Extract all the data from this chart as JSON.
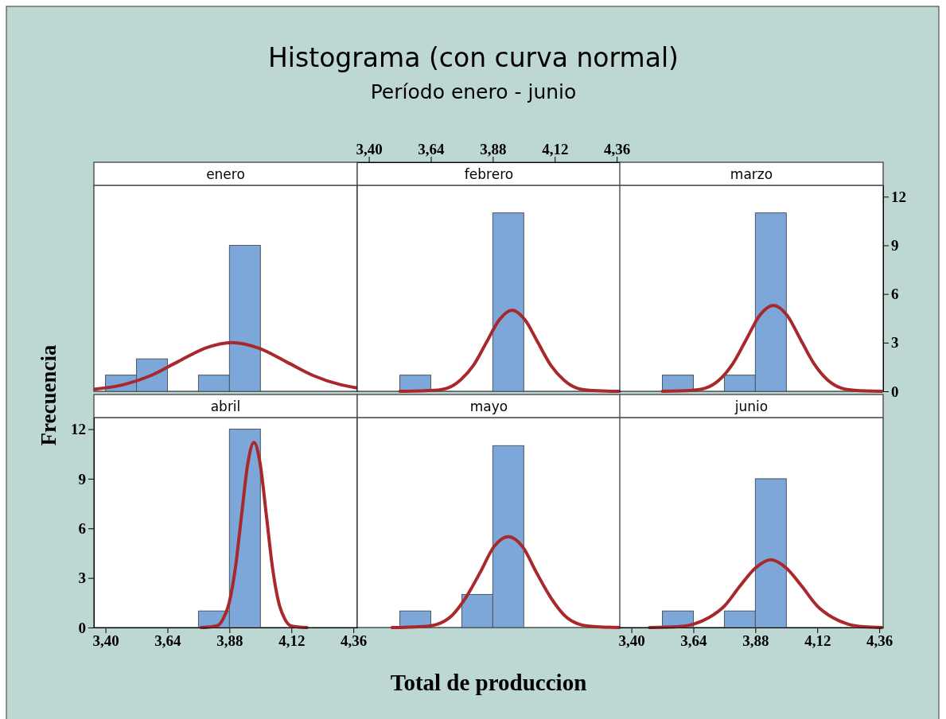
{
  "chart_data": [
    {
      "type": "histogram",
      "title": "enero",
      "annotations": [
        "Histograma (con curva normal)",
        "Período enero - junio"
      ],
      "ylabel": "Frecuencia",
      "xlim": [
        3.355,
        4.375
      ],
      "ylim": [
        0,
        12.7
      ],
      "tick_labels": false,
      "series": [
        {
          "type": "histogram",
          "color": "#7da7d9",
          "bins": [
            3.4,
            3.52,
            3.64,
            3.76,
            3.88,
            4.0
          ],
          "values": [
            1,
            2,
            0,
            1,
            9
          ]
        },
        {
          "type": "line",
          "color": "#a8282c",
          "x": [
            3.36,
            3.47,
            3.575,
            3.68,
            3.785,
            3.89,
            3.995,
            4.1,
            4.205,
            4.31,
            4.37
          ],
          "values": [
            0.13,
            0.41,
            0.97,
            1.82,
            2.65,
            3.0,
            2.65,
            1.82,
            0.97,
            0.41,
            0.22
          ]
        }
      ]
    },
    {
      "type": "histogram",
      "title": "febrero",
      "xlim": [
        3.355,
        4.375
      ],
      "xticks": [
        {
          "value": 3.4,
          "label": "3,40"
        },
        {
          "value": 3.64,
          "label": "3,64"
        },
        {
          "value": 3.88,
          "label": "3,88"
        },
        {
          "value": 4.12,
          "label": "4,12"
        },
        {
          "value": 4.36,
          "label": "4,36"
        }
      ],
      "ylim": [
        0,
        12.7
      ],
      "tick_labels": "x",
      "series": [
        {
          "type": "histogram",
          "color": "#7da7d9",
          "bins": [
            3.4,
            3.52,
            3.64,
            3.76,
            3.88,
            4.0
          ],
          "values": [
            0,
            1,
            0,
            0,
            11
          ]
        },
        {
          "type": "line",
          "color": "#a8282c",
          "x": [
            3.52,
            3.655,
            3.705,
            3.755,
            3.805,
            3.855,
            3.905,
            3.955,
            4.005,
            4.055,
            4.105,
            4.155,
            4.205,
            4.255,
            4.37
          ],
          "values": [
            0,
            0.06,
            0.2,
            0.7,
            1.6,
            3.0,
            4.4,
            5.0,
            4.4,
            3.0,
            1.6,
            0.7,
            0.2,
            0.06,
            0
          ]
        }
      ]
    },
    {
      "type": "histogram",
      "title": "marzo",
      "xlim": [
        3.355,
        4.375
      ],
      "ylim": [
        0,
        12.7
      ],
      "yticks": [
        0,
        3,
        6,
        9,
        12
      ],
      "tick_labels": "y",
      "series": [
        {
          "type": "histogram",
          "color": "#7da7d9",
          "bins": [
            3.4,
            3.52,
            3.64,
            3.76,
            3.88,
            4.0
          ],
          "values": [
            0,
            1,
            0,
            1,
            11
          ]
        },
        {
          "type": "line",
          "color": "#a8282c",
          "x": [
            3.52,
            3.635,
            3.6875,
            3.74,
            3.7925,
            3.845,
            3.8975,
            3.95,
            4.0025,
            4.055,
            4.1075,
            4.16,
            4.2125,
            4.265,
            4.37
          ],
          "values": [
            0,
            0.06,
            0.2,
            0.7,
            1.7,
            3.2,
            4.7,
            5.3,
            4.7,
            3.2,
            1.7,
            0.7,
            0.2,
            0.06,
            0
          ]
        }
      ]
    },
    {
      "type": "histogram",
      "title": "abril",
      "xlim": [
        3.355,
        4.375
      ],
      "xticks": [
        {
          "value": 3.4,
          "label": "3,40"
        },
        {
          "value": 3.64,
          "label": "3,64"
        },
        {
          "value": 3.88,
          "label": "3,88"
        },
        {
          "value": 4.12,
          "label": "4,12"
        },
        {
          "value": 4.36,
          "label": "4,36"
        }
      ],
      "ylim": [
        0,
        12.7
      ],
      "yticks": [
        0,
        3,
        6,
        9,
        12
      ],
      "series": [
        {
          "type": "histogram",
          "color": "#7da7d9",
          "bins": [
            3.4,
            3.52,
            3.64,
            3.76,
            3.88,
            4.0
          ],
          "values": [
            0,
            0,
            0,
            1,
            12
          ]
        },
        {
          "type": "line",
          "color": "#a8282c",
          "x": [
            3.77,
            3.831,
            3.855,
            3.879,
            3.903,
            3.927,
            3.951,
            3.975,
            3.999,
            4.023,
            4.047,
            4.071,
            4.095,
            4.119,
            4.18
          ],
          "values": [
            0,
            0.1,
            0.5,
            1.5,
            3.6,
            6.8,
            9.9,
            11.2,
            9.9,
            6.8,
            3.6,
            1.5,
            0.5,
            0.1,
            0
          ]
        }
      ]
    },
    {
      "type": "histogram",
      "title": "mayo",
      "xlabel": "Total de produccion",
      "xlim": [
        3.355,
        4.375
      ],
      "ylim": [
        0,
        12.7
      ],
      "tick_labels": false,
      "series": [
        {
          "type": "histogram",
          "color": "#7da7d9",
          "bins": [
            3.4,
            3.52,
            3.64,
            3.76,
            3.88,
            4.0
          ],
          "values": [
            0,
            1,
            0,
            2,
            11
          ]
        },
        {
          "type": "line",
          "color": "#a8282c",
          "x": [
            3.49,
            3.61,
            3.665,
            3.72,
            3.775,
            3.83,
            3.885,
            3.94,
            3.995,
            4.05,
            4.105,
            4.16,
            4.215,
            4.27,
            4.37
          ],
          "values": [
            0,
            0.06,
            0.2,
            0.7,
            1.8,
            3.3,
            4.9,
            5.5,
            4.9,
            3.3,
            1.8,
            0.7,
            0.2,
            0.06,
            0
          ]
        }
      ]
    },
    {
      "type": "histogram",
      "title": "junio",
      "xlim": [
        3.355,
        4.375
      ],
      "xticks": [
        {
          "value": 3.4,
          "label": "3,40"
        },
        {
          "value": 3.64,
          "label": "3,64"
        },
        {
          "value": 3.88,
          "label": "3,88"
        },
        {
          "value": 4.12,
          "label": "4,12"
        },
        {
          "value": 4.36,
          "label": "4,36"
        }
      ],
      "ylim": [
        0,
        12.7
      ],
      "tick_labels": "x",
      "series": [
        {
          "type": "histogram",
          "color": "#7da7d9",
          "bins": [
            3.4,
            3.52,
            3.64,
            3.76,
            3.88,
            4.0
          ],
          "values": [
            0,
            1,
            0,
            1,
            9
          ]
        },
        {
          "type": "line",
          "color": "#a8282c",
          "x": [
            3.47,
            3.58,
            3.64,
            3.7,
            3.76,
            3.82,
            3.88,
            3.94,
            4.0,
            4.06,
            4.12,
            4.18,
            4.24,
            4.3,
            4.37
          ],
          "values": [
            0,
            0.05,
            0.2,
            0.6,
            1.3,
            2.5,
            3.6,
            4.1,
            3.6,
            2.5,
            1.3,
            0.6,
            0.2,
            0.05,
            0
          ]
        }
      ]
    }
  ]
}
